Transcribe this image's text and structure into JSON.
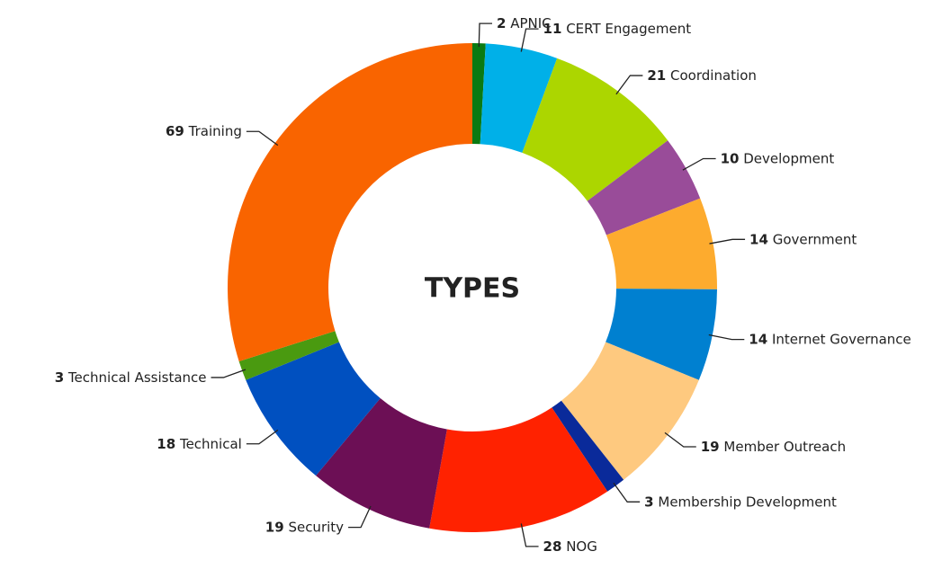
{
  "chart_data": {
    "type": "donut",
    "title": "TYPES",
    "categories": [
      "APNIC",
      "CERT Engagement",
      "Coordination",
      "Development",
      "Government",
      "Internet Governance",
      "Member Outreach",
      "Membership Development",
      "NOG",
      "Security",
      "Technical",
      "Technical Assistance",
      "Training"
    ],
    "values": [
      2,
      11,
      21,
      10,
      14,
      14,
      19,
      3,
      28,
      19,
      18,
      3,
      69
    ],
    "colors": [
      "#0b7a12",
      "#00b0e8",
      "#acd600",
      "#994c99",
      "#fdab2e",
      "#0080d0",
      "#fec97f",
      "#0a2a9a",
      "#ff2200",
      "#6c0f55",
      "#0050c0",
      "#4a9a10",
      "#f96400"
    ]
  }
}
